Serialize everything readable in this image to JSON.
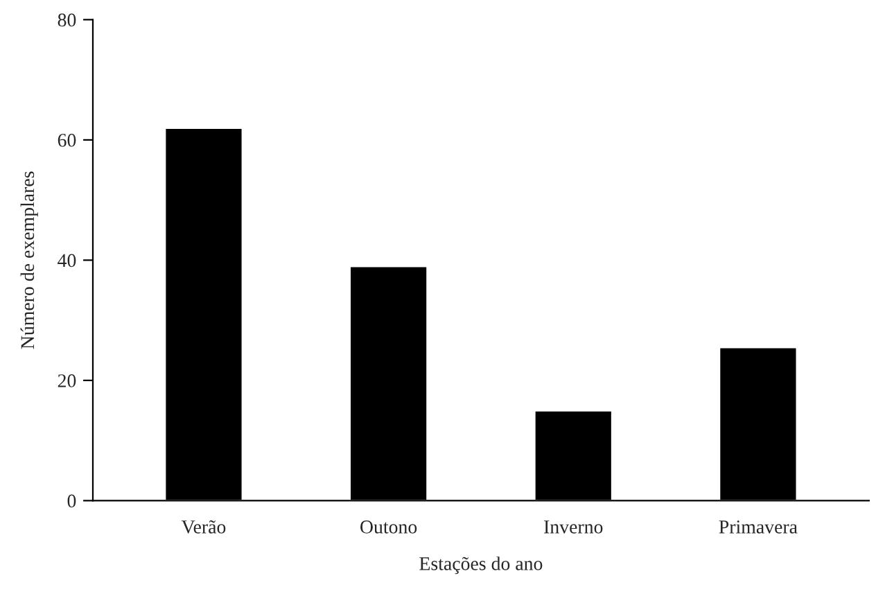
{
  "chart_data": {
    "type": "bar",
    "xlabel": "Estações do ano",
    "ylabel": "Número de exemplares",
    "categories": [
      "Verão",
      "Outono",
      "Inverno",
      "Primavera"
    ],
    "values": [
      62,
      39,
      15,
      25.5
    ],
    "color": "#000000",
    "ylim": [
      0,
      80
    ],
    "yticks": [
      0,
      20,
      40,
      60,
      80
    ],
    "grid": false,
    "legend": false
  }
}
